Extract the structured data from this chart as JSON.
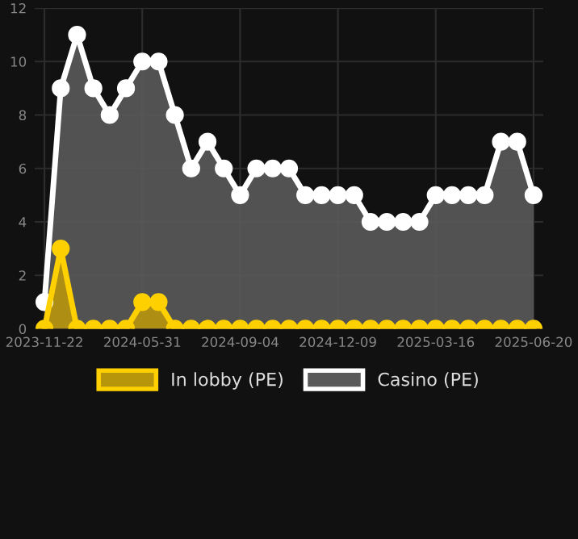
{
  "chart_data": {
    "type": "area",
    "categories": [
      "2023-11-22",
      null,
      null,
      null,
      null,
      null,
      "2024-05-31",
      null,
      null,
      null,
      null,
      null,
      "2024-09-04",
      null,
      null,
      null,
      null,
      null,
      "2024-12-09",
      null,
      null,
      null,
      null,
      null,
      "2025-03-16",
      null,
      null,
      null,
      null,
      null,
      "2025-06-20"
    ],
    "series": [
      {
        "name": "In lobby (PE)",
        "color": "#ffd000",
        "values": [
          0,
          3,
          0,
          0,
          0,
          0,
          1,
          1,
          0,
          0,
          0,
          0,
          0,
          0,
          0,
          0,
          0,
          0,
          0,
          0,
          0,
          0,
          0,
          0,
          0,
          0,
          0,
          0,
          0,
          0,
          0
        ]
      },
      {
        "name": "Casino (PE)",
        "color": "#ffffff",
        "values": [
          1,
          9,
          11,
          9,
          8,
          9,
          10,
          10,
          8,
          6,
          7,
          6,
          5,
          6,
          6,
          6,
          5,
          5,
          5,
          5,
          4,
          4,
          4,
          4,
          5,
          5,
          5,
          5,
          7,
          7,
          5
        ]
      }
    ],
    "ylim": [
      0,
      12
    ],
    "yticks": [
      0,
      2,
      4,
      6,
      8,
      10,
      12
    ],
    "grid": true,
    "legend": "bottom",
    "marker": "circle",
    "line_style": "solid"
  }
}
